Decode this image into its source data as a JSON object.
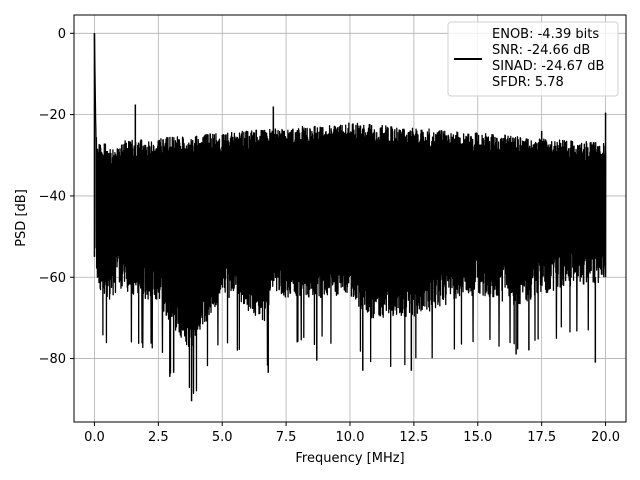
{
  "chart_data": {
    "type": "line",
    "title": "",
    "xlabel": "Frequency [MHz]",
    "ylabel": "PSD [dB]",
    "xlim": [
      -0.8,
      20.8
    ],
    "ylim": [
      -95.6,
      4.5
    ],
    "xticks": [
      0.0,
      2.5,
      5.0,
      7.5,
      10.0,
      12.5,
      15.0,
      17.5,
      20.0
    ],
    "xtick_labels": [
      "0.0",
      "2.5",
      "5.0",
      "7.5",
      "10.0",
      "12.5",
      "15.0",
      "17.5",
      "20.0"
    ],
    "yticks": [
      0,
      -20,
      -40,
      -60,
      -80
    ],
    "ytick_labels": [
      "0",
      "−20",
      "−40",
      "−60",
      "−80"
    ],
    "grid": true,
    "legend_position": "top-right",
    "line_color": "#000000",
    "series": [
      {
        "name": "ENOB: -4.39 bits\nSNR: -24.66 dB\nSINAD: -24.67 dB\nSFDR: 5.78",
        "legend_lines": [
          "ENOB: -4.39 bits",
          "SNR: -24.66 dB",
          "SINAD: -24.67 dB",
          "SFDR: 5.78"
        ],
        "description_points": {
          "x": [
            0.0,
            0.05,
            0.5,
            1.0,
            1.6,
            2.5,
            3.0,
            3.8,
            5.0,
            6.8,
            7.0,
            7.5,
            10.0,
            10.5,
            12.5,
            15.0,
            16.5,
            17.0,
            17.5,
            20.0
          ],
          "upper": [
            0.0,
            -23,
            -28,
            -28,
            -17.5,
            -26,
            -25,
            -24,
            -23,
            -22,
            -18,
            -22,
            -22,
            -22,
            -22.5,
            -23,
            -22.5,
            -23,
            -24,
            -19.5
          ],
          "lower": [
            -55,
            -73,
            -78,
            -75,
            -77,
            -78,
            -84,
            -90.5,
            -76,
            -83.5,
            -75,
            -77,
            -77,
            -82,
            -82,
            -76,
            -79,
            -78,
            -76,
            -73
          ]
        }
      }
    ]
  }
}
